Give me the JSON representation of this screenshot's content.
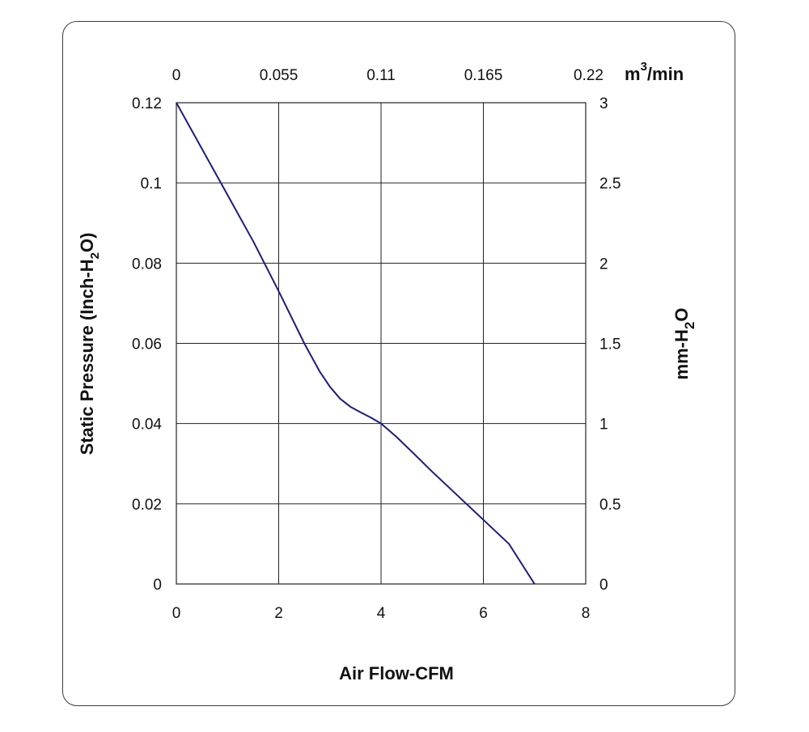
{
  "chart_data": {
    "type": "line",
    "title": "",
    "xlabel": "Air Flow-CFM",
    "ylabel": {
      "pre": "Static Pressure (Inch-H",
      "sub": "2",
      "post": "O)"
    },
    "x2label": {
      "pre": "m",
      "sup": "3",
      "post": "/min"
    },
    "y2label": {
      "pre": "mm-H",
      "sub": "2",
      "post": "O"
    },
    "xlim": [
      0,
      8
    ],
    "ylim": [
      0,
      0.12
    ],
    "xticks": [
      0,
      2,
      4,
      6,
      8
    ],
    "xtick_labels": [
      "0",
      "2",
      "4",
      "6",
      "8"
    ],
    "yticks": [
      0,
      0.02,
      0.04,
      0.06,
      0.08,
      0.1,
      0.12
    ],
    "ytick_labels": [
      "0",
      "0.02",
      "0.04",
      "0.06",
      "0.08",
      "0.1",
      "0.12"
    ],
    "x2ticks": [
      0,
      2,
      4,
      6,
      8
    ],
    "x2tick_labels": [
      "0",
      "0.055",
      "0.11",
      "0.165",
      "0.22"
    ],
    "y2ticks": [
      0,
      0.02,
      0.04,
      0.06,
      0.08,
      0.1,
      0.12
    ],
    "y2tick_labels": [
      "0",
      "0.5",
      "1",
      "1.5",
      "2",
      "2.5",
      "3"
    ],
    "grid": true,
    "line_color": "#1c1c80",
    "series": [
      {
        "x": [
          0,
          0.5,
          1.0,
          1.5,
          2.0,
          2.5,
          2.8,
          3.0,
          3.2,
          3.4,
          3.6,
          3.8,
          4.0,
          4.3,
          4.6,
          5.0,
          5.5,
          6.0,
          6.5,
          7.0
        ],
        "y": [
          0.12,
          0.1085,
          0.097,
          0.0855,
          0.073,
          0.06,
          0.053,
          0.0492,
          0.0462,
          0.0442,
          0.0428,
          0.0415,
          0.04,
          0.0367,
          0.033,
          0.028,
          0.022,
          0.016,
          0.01,
          0.0
        ]
      }
    ]
  }
}
